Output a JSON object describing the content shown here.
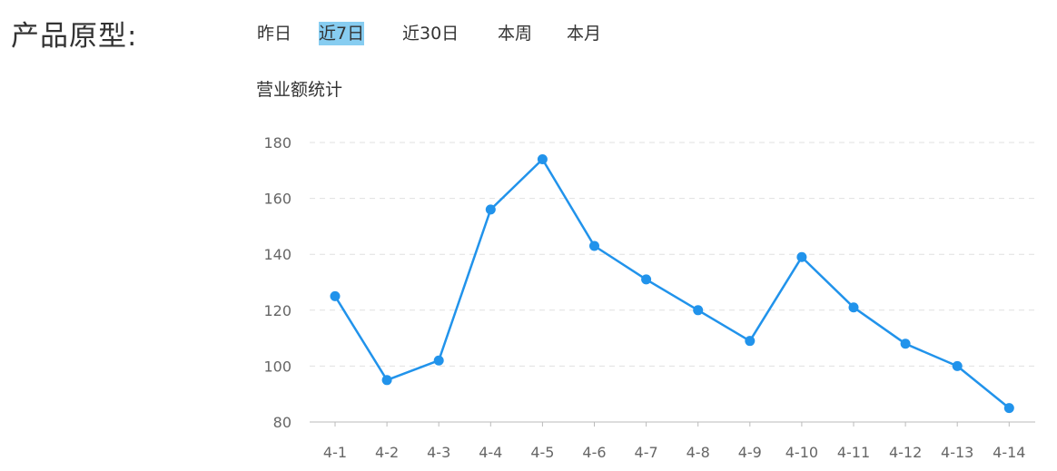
{
  "header": {
    "title": "产品原型:"
  },
  "range_tabs": [
    {
      "label": "昨日",
      "active": false
    },
    {
      "label": "近7日",
      "active": true
    },
    {
      "label": "近30日",
      "active": false
    },
    {
      "label": "本周",
      "active": false
    },
    {
      "label": "本月",
      "active": false
    }
  ],
  "colors": {
    "series": "#2193eb",
    "active_tab": "#87cdf1",
    "grid": "#e0e0e0",
    "axis": "#bbbbbb"
  },
  "chart_data": {
    "type": "line",
    "title": "营业额统计",
    "xlabel": "",
    "ylabel": "",
    "categories": [
      "4-1",
      "4-2",
      "4-3",
      "4-4",
      "4-5",
      "4-6",
      "4-7",
      "4-8",
      "4-9",
      "4-10",
      "4-11",
      "4-12",
      "4-13",
      "4-14"
    ],
    "values": [
      125,
      95,
      102,
      156,
      174,
      143,
      131,
      120,
      109,
      139,
      121,
      108,
      100,
      85
    ],
    "ylim": [
      80,
      180
    ],
    "yticks": [
      80,
      100,
      120,
      140,
      160,
      180
    ],
    "grid": true,
    "legend": "none"
  }
}
